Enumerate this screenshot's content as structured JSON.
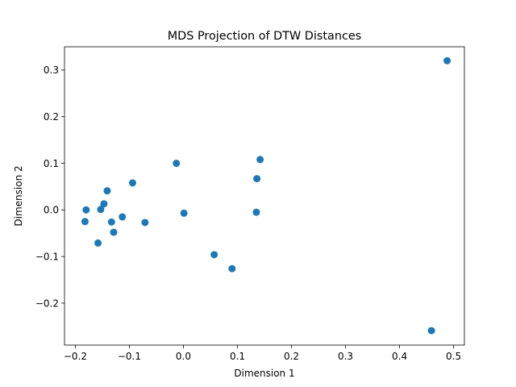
{
  "chart_data": {
    "type": "scatter",
    "title": "MDS Projection of DTW Distances",
    "xlabel": "Dimension 1",
    "ylabel": "Dimension 2",
    "xlim": [
      -0.22,
      0.52
    ],
    "ylim": [
      -0.29,
      0.35
    ],
    "xticks": [
      -0.2,
      -0.1,
      0.0,
      0.1,
      0.2,
      0.3,
      0.4,
      0.5
    ],
    "xtick_labels": [
      "−0.2",
      "−0.1",
      "0.0",
      "0.1",
      "0.2",
      "0.3",
      "0.4",
      "0.5"
    ],
    "yticks": [
      -0.2,
      -0.1,
      0.0,
      0.1,
      0.2,
      0.3
    ],
    "ytick_labels": [
      "−0.2",
      "−0.1",
      "0.0",
      "0.1",
      "0.2",
      "0.3"
    ],
    "grid": false,
    "marker_color": "#1f77b4",
    "points": [
      {
        "x": 0.488,
        "y": 0.32
      },
      {
        "x": 0.459,
        "y": -0.259
      },
      {
        "x": 0.142,
        "y": 0.108
      },
      {
        "x": 0.136,
        "y": 0.067
      },
      {
        "x": 0.135,
        "y": -0.005
      },
      {
        "x": 0.09,
        "y": -0.126
      },
      {
        "x": 0.057,
        "y": -0.096
      },
      {
        "x": 0.001,
        "y": -0.007
      },
      {
        "x": -0.013,
        "y": 0.1
      },
      {
        "x": -0.071,
        "y": -0.027
      },
      {
        "x": -0.094,
        "y": 0.058
      },
      {
        "x": -0.113,
        "y": -0.015
      },
      {
        "x": -0.129,
        "y": -0.048
      },
      {
        "x": -0.133,
        "y": -0.026
      },
      {
        "x": -0.141,
        "y": 0.041
      },
      {
        "x": -0.147,
        "y": 0.013
      },
      {
        "x": -0.153,
        "y": 0.001
      },
      {
        "x": -0.158,
        "y": -0.071
      },
      {
        "x": -0.18,
        "y": 0.0
      },
      {
        "x": -0.182,
        "y": -0.025
      }
    ]
  }
}
